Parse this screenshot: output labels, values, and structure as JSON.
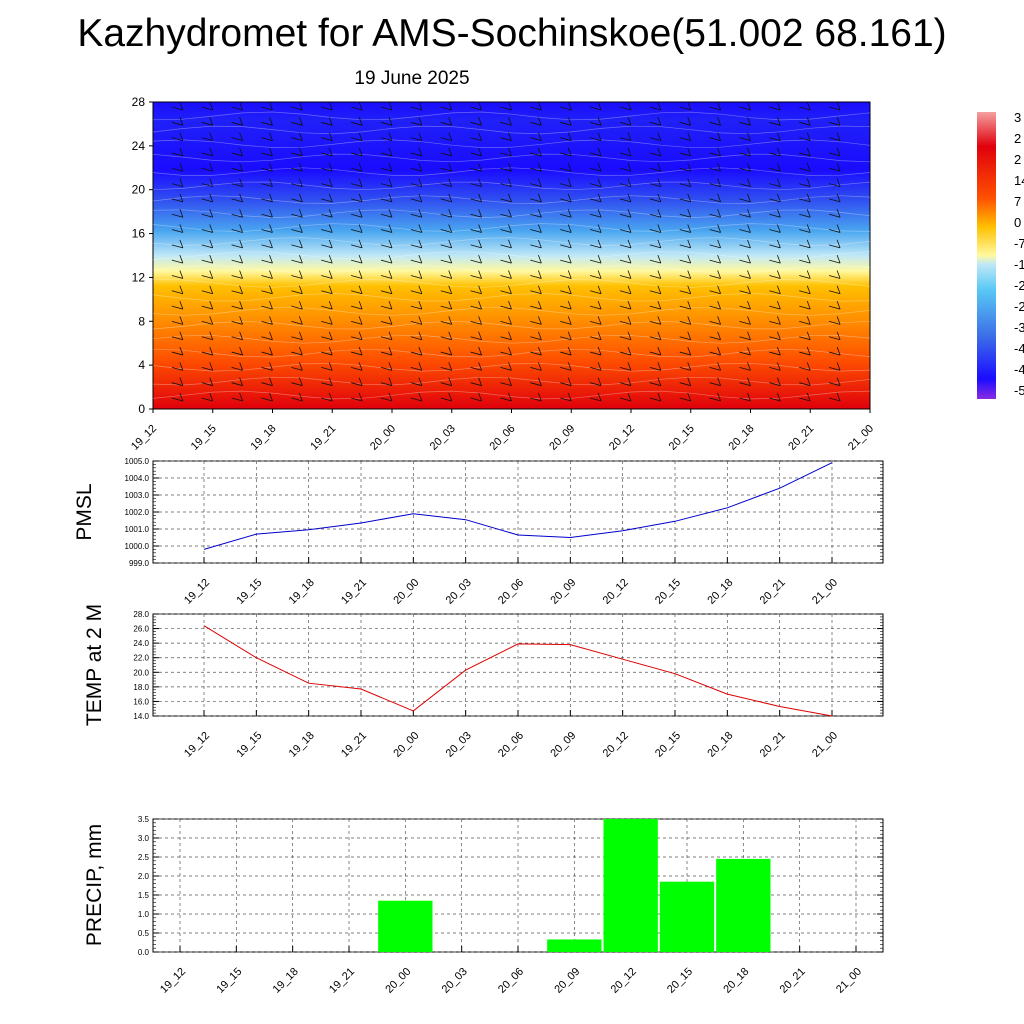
{
  "title": "Kazhydromet for AMS-Sochinskoe(51.002 68.161)",
  "date": "19 June 2025",
  "colorbar": {
    "visible_labels": [
      "3",
      "2",
      "2",
      "14",
      "7",
      "0",
      "-7",
      "-1",
      "-2",
      "-2",
      "-3",
      "-4",
      "-4",
      "-5"
    ]
  },
  "chart_data": [
    {
      "type": "heatmap",
      "title": "",
      "ylim": [
        0,
        28
      ],
      "yticks": [
        0,
        4,
        8,
        12,
        16,
        20,
        24,
        28
      ],
      "categories": [
        "19_12",
        "19_15",
        "19_18",
        "19_21",
        "20_00",
        "20_03",
        "20_06",
        "20_09",
        "20_12",
        "20_15",
        "20_18",
        "20_21",
        "21_00"
      ],
      "colors": [
        "#8a2be2",
        "#1a0cff",
        "#3c6fe8",
        "#58c8f5",
        "#fff9a0",
        "#ffc000",
        "#ff5000",
        "#e0000c",
        "#f5a0a0"
      ]
    },
    {
      "type": "line",
      "ylabel": "PMSL",
      "ylim": [
        999.0,
        1005.0
      ],
      "yticks": [
        "999.0",
        "1000.0",
        "1001.0",
        "1002.0",
        "1003.0",
        "1004.0",
        "1005.0"
      ],
      "categories": [
        "19_12",
        "19_15",
        "19_18",
        "19_21",
        "20_00",
        "20_03",
        "20_06",
        "20_09",
        "20_12",
        "20_15",
        "20_18",
        "20_21",
        "21_00"
      ],
      "series": [
        {
          "values": [
            999.8,
            1000.7,
            1000.95,
            1001.35,
            1001.9,
            1001.55,
            1000.65,
            1000.5,
            1000.9,
            1001.45,
            1002.25,
            1003.4,
            1004.9
          ],
          "color": "#0000cc"
        }
      ],
      "grid": true
    },
    {
      "type": "line",
      "ylabel": "TEMP at 2 M",
      "ylim": [
        14.0,
        28.0
      ],
      "yticks": [
        "14.0",
        "16.0",
        "18.0",
        "20.0",
        "22.0",
        "24.0",
        "26.0",
        "28.0"
      ],
      "categories": [
        "19_12",
        "19_15",
        "19_18",
        "19_21",
        "20_00",
        "20_03",
        "20_06",
        "20_09",
        "20_12",
        "20_15",
        "20_18",
        "20_21",
        "21_00"
      ],
      "series": [
        {
          "values": [
            26.4,
            22.0,
            18.5,
            17.7,
            14.7,
            20.3,
            23.9,
            23.8,
            21.8,
            19.8,
            17.0,
            15.3,
            14.0
          ],
          "color": "#dd0000"
        }
      ],
      "grid": true
    },
    {
      "type": "bar",
      "ylabel": "PRECIP, mm",
      "ylim": [
        0.0,
        3.5
      ],
      "yticks": [
        "0.0",
        "0.5",
        "1.0",
        "1.5",
        "2.0",
        "2.5",
        "3.0",
        "3.5"
      ],
      "categories": [
        "19_12",
        "19_15",
        "19_18",
        "19_21",
        "20_00",
        "20_03",
        "20_06",
        "20_09",
        "20_12",
        "20_15",
        "20_18",
        "20_21",
        "21_00"
      ],
      "values": [
        0.0,
        0.0,
        0.0,
        0.0,
        1.35,
        0.0,
        0.0,
        0.33,
        3.5,
        1.85,
        2.45,
        0.0,
        0.0
      ],
      "color": "#00ff00",
      "grid": true
    }
  ]
}
